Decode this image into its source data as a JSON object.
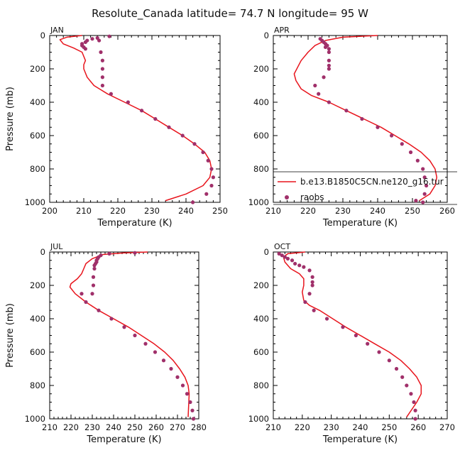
{
  "title": "Resolute_Canada   latitude= 74.7 N longitude= 95 W",
  "chart_data": [
    {
      "type": "line",
      "panel": "JAN",
      "xlabel": "Temperature (K)",
      "ylabel": "Pressure (mb)",
      "xlim": [
        200,
        250
      ],
      "ylim": [
        1000,
        0
      ],
      "xticks": [
        "200",
        "210",
        "220",
        "230",
        "240",
        "250"
      ],
      "yticks": [
        "0",
        "200",
        "400",
        "600",
        "800",
        "1000"
      ],
      "series": [
        {
          "name": "b.e13.B1850C5CN.ne120_g16.tur",
          "color": "#e8141c",
          "x": [
            209.5,
            205,
            203,
            204,
            207,
            209.5,
            210.5,
            210,
            210,
            211,
            213,
            217,
            222,
            227,
            231,
            235,
            239,
            242.5,
            245.5,
            247,
            247.5,
            247,
            245,
            240,
            234
          ],
          "y": [
            0,
            10,
            25,
            50,
            75,
            100,
            150,
            175,
            200,
            250,
            300,
            350,
            400,
            450,
            500,
            550,
            600,
            650,
            700,
            750,
            800,
            850,
            900,
            950,
            990
          ]
        },
        {
          "name": "raobs",
          "color": "#a0306a",
          "x": [
            217.5,
            214,
            212.5,
            211,
            210.5,
            209.5,
            209.5,
            210,
            210.5,
            214.5,
            215,
            215.5,
            215.5,
            215.5,
            215.5,
            218,
            223,
            227,
            231,
            235,
            239,
            242.5,
            245,
            246.5,
            247.5,
            248,
            247.5,
            246,
            242
          ],
          "y": [
            5,
            15,
            20,
            30,
            40,
            50,
            60,
            70,
            80,
            30,
            100,
            150,
            200,
            250,
            300,
            350,
            400,
            450,
            500,
            550,
            600,
            650,
            700,
            750,
            800,
            850,
            900,
            950,
            1000
          ]
        }
      ]
    },
    {
      "type": "line",
      "panel": "APR",
      "xlabel": "Temperature (K)",
      "ylabel": "",
      "xlim": [
        210,
        260
      ],
      "ylim": [
        1000,
        0
      ],
      "xticks": [
        "210",
        "220",
        "230",
        "240",
        "250",
        "260"
      ],
      "yticks": [
        "0",
        "200",
        "400",
        "600",
        "800",
        "1000"
      ],
      "series": [
        {
          "name": "b.e13.B1850C5CN.ne120_g16.tur",
          "color": "#e8141c",
          "x": [
            240,
            230,
            225,
            222,
            220,
            218,
            217,
            216,
            216.5,
            218,
            221,
            226,
            231,
            236,
            241,
            245,
            249,
            252.5,
            255,
            256.5,
            257,
            256.5,
            255,
            252
          ],
          "y": [
            0,
            10,
            30,
            60,
            100,
            150,
            190,
            230,
            270,
            320,
            360,
            400,
            450,
            500,
            550,
            600,
            650,
            700,
            750,
            800,
            850,
            900,
            950,
            990
          ]
        },
        {
          "name": "raobs",
          "color": "#a0306a",
          "x": [
            223.5,
            224,
            224.5,
            225,
            225.5,
            225,
            226,
            226,
            226,
            226,
            226,
            224.5,
            222,
            223,
            226,
            231,
            235.5,
            240,
            244,
            247,
            249.5,
            251.5,
            253,
            253.5,
            254,
            253.5,
            253,
            251
          ],
          "y": [
            20,
            30,
            40,
            50,
            60,
            70,
            80,
            100,
            150,
            180,
            200,
            250,
            300,
            350,
            400,
            450,
            500,
            550,
            600,
            650,
            700,
            750,
            800,
            850,
            900,
            950,
            1000,
            990
          ]
        }
      ]
    },
    {
      "type": "line",
      "panel": "JUL",
      "xlabel": "Temperature (K)",
      "ylabel": "Pressure (mb)",
      "xlim": [
        210,
        280
      ],
      "ylim": [
        1000,
        0
      ],
      "xticks": [
        "210",
        "220",
        "230",
        "240",
        "250",
        "260",
        "270",
        "280"
      ],
      "yticks": [
        "0",
        "200",
        "400",
        "600",
        "800",
        "1000"
      ],
      "series": [
        {
          "name": "b.e13.B1850C5CN.ne120_g16.tur",
          "color": "#e8141c",
          "x": [
            256,
            245,
            235,
            230,
            227,
            226,
            225,
            223,
            220,
            219.5,
            222,
            227,
            233,
            240,
            247,
            253,
            259,
            264,
            268,
            271,
            273.5,
            275,
            275.5,
            275
          ],
          "y": [
            0,
            5,
            15,
            40,
            70,
            100,
            130,
            160,
            190,
            210,
            250,
            300,
            350,
            400,
            450,
            500,
            550,
            600,
            650,
            700,
            750,
            800,
            850,
            990
          ]
        },
        {
          "name": "raobs",
          "color": "#a0306a",
          "x": [
            250,
            238,
            234,
            233,
            232.5,
            232,
            232,
            231.5,
            231,
            231,
            230.5,
            230.5,
            230,
            225,
            227,
            233,
            239,
            245,
            250,
            255,
            259.5,
            263.5,
            267,
            270,
            272.5,
            274.5,
            276,
            277,
            277.5
          ],
          "y": [
            5,
            10,
            20,
            30,
            40,
            50,
            60,
            70,
            80,
            100,
            150,
            200,
            250,
            250,
            300,
            350,
            400,
            450,
            500,
            550,
            600,
            650,
            700,
            750,
            800,
            850,
            900,
            950,
            1000
          ]
        }
      ]
    },
    {
      "type": "line",
      "panel": "OCT",
      "xlabel": "Temperature (K)",
      "ylabel": "",
      "xlim": [
        210,
        270
      ],
      "ylim": [
        1000,
        0
      ],
      "xticks": [
        "210",
        "220",
        "230",
        "240",
        "250",
        "260",
        "270"
      ],
      "yticks": [
        "0",
        "200",
        "400",
        "600",
        "800",
        "1000"
      ],
      "series": [
        {
          "name": "b.e13.B1850C5CN.ne120_g16.tur",
          "color": "#e8141c",
          "x": [
            221,
            215,
            213.5,
            214,
            216,
            219,
            220.5,
            220.5,
            220,
            220.5,
            222.5,
            226,
            230.5,
            235,
            240,
            245,
            250,
            254,
            257,
            259.5,
            261,
            261,
            259.5,
            256
          ],
          "y": [
            0,
            10,
            30,
            60,
            100,
            130,
            160,
            200,
            240,
            290,
            320,
            350,
            400,
            450,
            500,
            550,
            600,
            650,
            700,
            750,
            800,
            850,
            900,
            990
          ]
        },
        {
          "name": "raobs",
          "color": "#a0306a",
          "x": [
            212,
            213,
            214,
            215,
            216.5,
            217.5,
            219,
            220.5,
            222.5,
            223.5,
            223.5,
            223.5,
            222.5,
            221,
            224,
            228.5,
            234,
            238.5,
            242.5,
            246.5,
            250,
            252.5,
            254.5,
            256,
            257.5,
            258.5,
            259,
            259
          ],
          "y": [
            10,
            20,
            30,
            40,
            50,
            70,
            80,
            90,
            110,
            150,
            180,
            200,
            250,
            300,
            350,
            400,
            450,
            500,
            550,
            600,
            650,
            700,
            750,
            800,
            850,
            900,
            950,
            1000
          ]
        }
      ]
    }
  ],
  "legend": {
    "panel": "APR",
    "placement": "bottom-right",
    "items": [
      {
        "label": "b.e13.B1850C5CN.ne120_g16.tur",
        "marker": "line",
        "color": "#e8141c"
      },
      {
        "label": "raobs",
        "marker": "dot",
        "color": "#a0306a"
      }
    ]
  }
}
